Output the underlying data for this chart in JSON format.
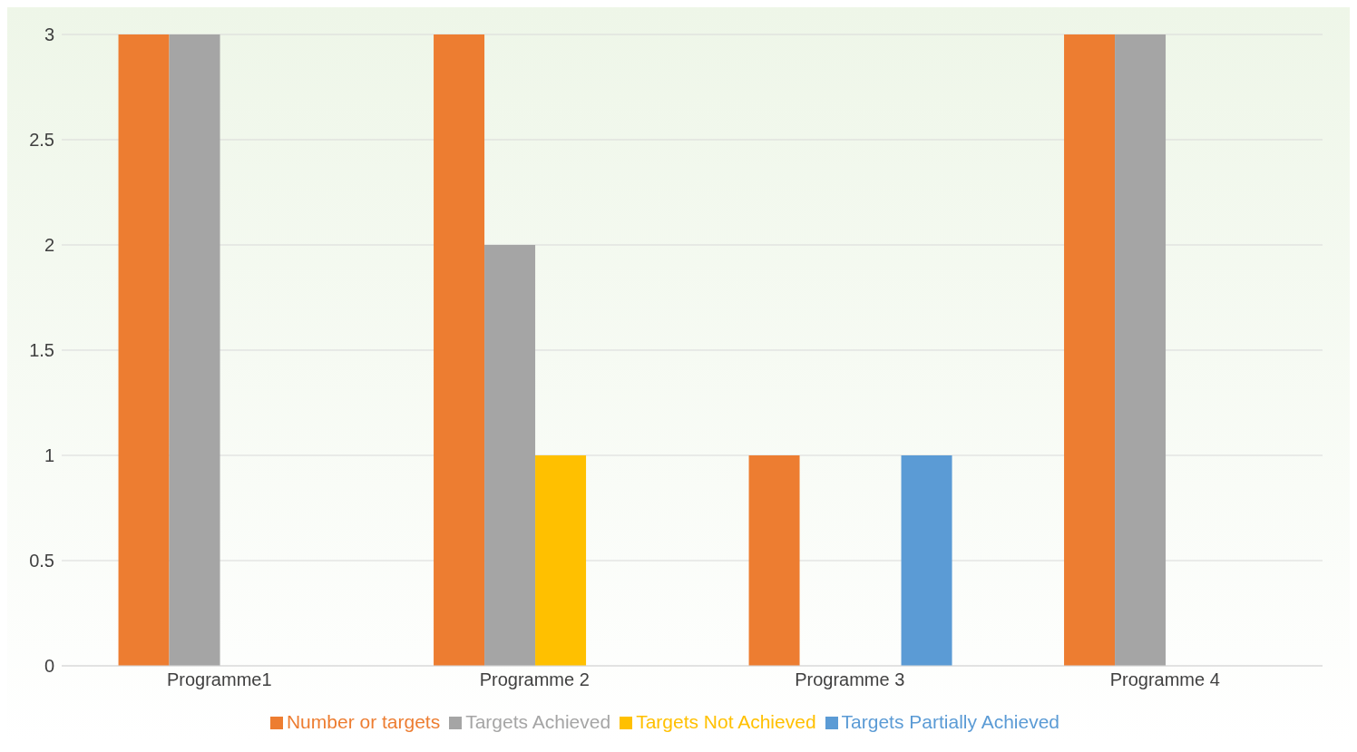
{
  "chart_data": {
    "type": "bar",
    "categories": [
      "Programme1",
      "Programme 2",
      "Programme 3",
      "Programme 4"
    ],
    "series": [
      {
        "name": "Number or targets",
        "color": "#ed7d31",
        "values": [
          3,
          3,
          1,
          3
        ]
      },
      {
        "name": "Targets Achieved",
        "color": "#a5a5a5",
        "values": [
          3,
          2,
          0,
          3
        ]
      },
      {
        "name": "Targets Not Achieved",
        "color": "#ffc000",
        "values": [
          0,
          1,
          0,
          0
        ]
      },
      {
        "name": "Targets Partially Achieved",
        "color": "#5b9bd5",
        "values": [
          0,
          0,
          1,
          0
        ]
      }
    ],
    "ylim": [
      0,
      3
    ],
    "yticks": [
      0,
      0.5,
      1,
      1.5,
      2,
      2.5,
      3
    ],
    "grid": "y",
    "legend": "bottom"
  }
}
